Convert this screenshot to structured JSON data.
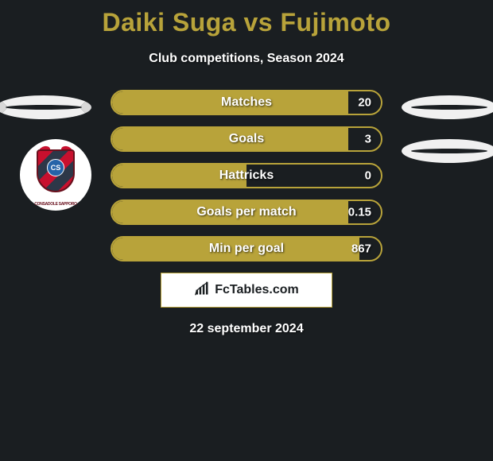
{
  "title": "Daiki Suga vs Fujimoto",
  "subtitle": "Club competitions, Season 2024",
  "date": "22 september 2024",
  "footer_brand": "FcTables.com",
  "colors": {
    "accent": "#b8a33a",
    "background": "#1a1e21",
    "text": "#ffffff"
  },
  "club_badge": {
    "initials": "CS",
    "name": "CONSADOLE SAPPORO"
  },
  "stats": [
    {
      "label": "Matches",
      "value": "20",
      "fill_pct": 88
    },
    {
      "label": "Goals",
      "value": "3",
      "fill_pct": 88
    },
    {
      "label": "Hattricks",
      "value": "0",
      "fill_pct": 50
    },
    {
      "label": "Goals per match",
      "value": "0.15",
      "fill_pct": 88
    },
    {
      "label": "Min per goal",
      "value": "867",
      "fill_pct": 92
    }
  ]
}
